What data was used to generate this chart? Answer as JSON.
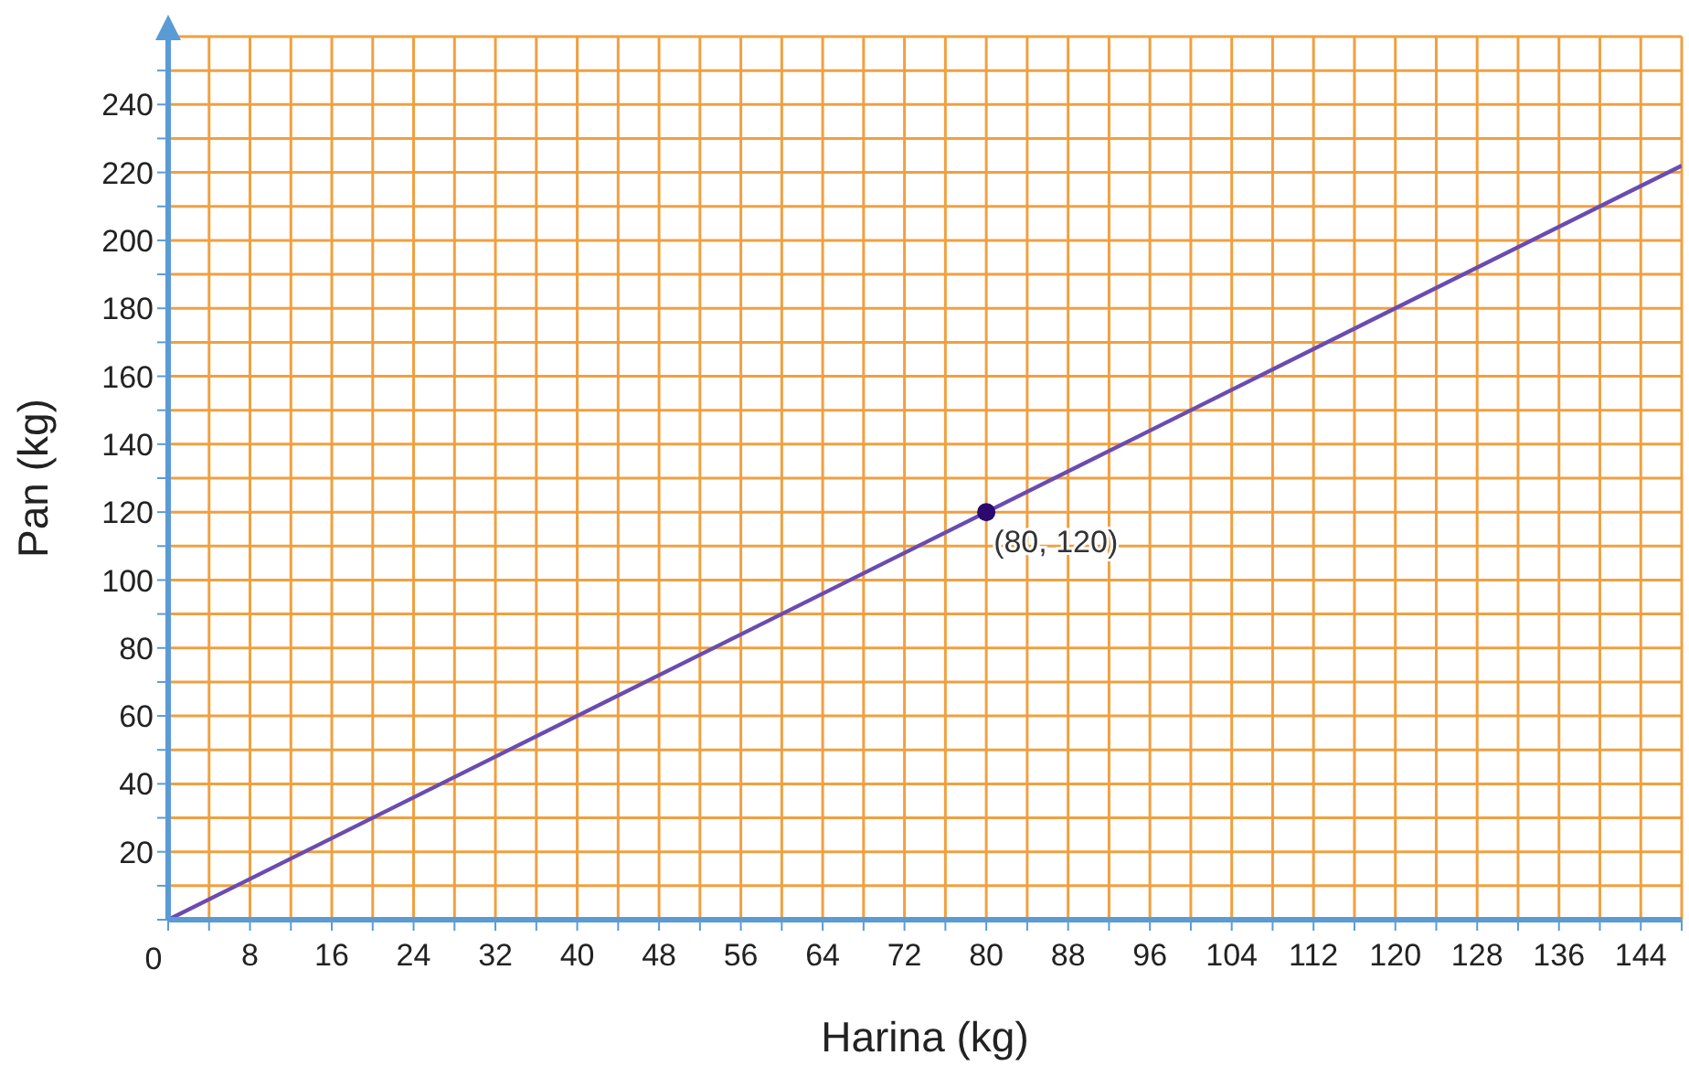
{
  "chart_data": {
    "type": "line",
    "xlabel": "Harina (kg)",
    "ylabel": "Pan (kg)",
    "grid": true,
    "xlim": [
      0,
      148
    ],
    "ylim": [
      0,
      260
    ],
    "xticks": [
      0,
      {
        "value": 4,
        "label": null
      },
      8,
      {
        "value": 12,
        "label": null
      },
      16,
      {
        "value": 20,
        "label": null
      },
      24,
      {
        "value": 28,
        "label": null
      },
      32,
      {
        "value": 36,
        "label": null
      },
      40,
      {
        "value": 44,
        "label": null
      },
      48,
      {
        "value": 52,
        "label": null
      },
      56,
      {
        "value": 60,
        "label": null
      },
      64,
      {
        "value": 68,
        "label": null
      },
      72,
      {
        "value": 76,
        "label": null
      },
      80,
      {
        "value": 84,
        "label": null
      },
      88,
      {
        "value": 92,
        "label": null
      },
      96,
      {
        "value": 100,
        "label": null
      },
      104,
      {
        "value": 108,
        "label": null
      },
      112,
      {
        "value": 116,
        "label": null
      },
      120,
      {
        "value": 124,
        "label": null
      },
      128,
      {
        "value": 132,
        "label": null
      },
      136,
      {
        "value": 140,
        "label": null
      },
      144,
      {
        "value": 148,
        "label": null
      }
    ],
    "yticks": [
      {
        "value": 0,
        "label": null
      },
      {
        "value": 10,
        "label": null
      },
      20,
      {
        "value": 30,
        "label": null
      },
      40,
      {
        "value": 50,
        "label": null
      },
      60,
      {
        "value": 70,
        "label": null
      },
      80,
      {
        "value": 90,
        "label": null
      },
      100,
      {
        "value": 110,
        "label": null
      },
      120,
      {
        "value": 130,
        "label": null
      },
      140,
      {
        "value": 150,
        "label": null
      },
      160,
      {
        "value": 170,
        "label": null
      },
      180,
      {
        "value": 190,
        "label": null
      },
      200,
      {
        "value": 210,
        "label": null
      },
      220,
      {
        "value": 230,
        "label": null
      },
      240,
      {
        "value": 250,
        "label": null
      },
      {
        "value": 260,
        "label": null
      }
    ],
    "series": [
      {
        "type": "line",
        "color": "#6a4cb0",
        "x": [
          0,
          148
        ],
        "values": [
          0,
          222
        ],
        "marker": "none"
      },
      {
        "type": "scatter",
        "color": "#2a0a6e",
        "x": [
          80
        ],
        "values": [
          120
        ],
        "marker": "circle"
      }
    ],
    "annotations": [
      {
        "text": "(80, 120)",
        "x": 80,
        "y": 120
      }
    ]
  }
}
